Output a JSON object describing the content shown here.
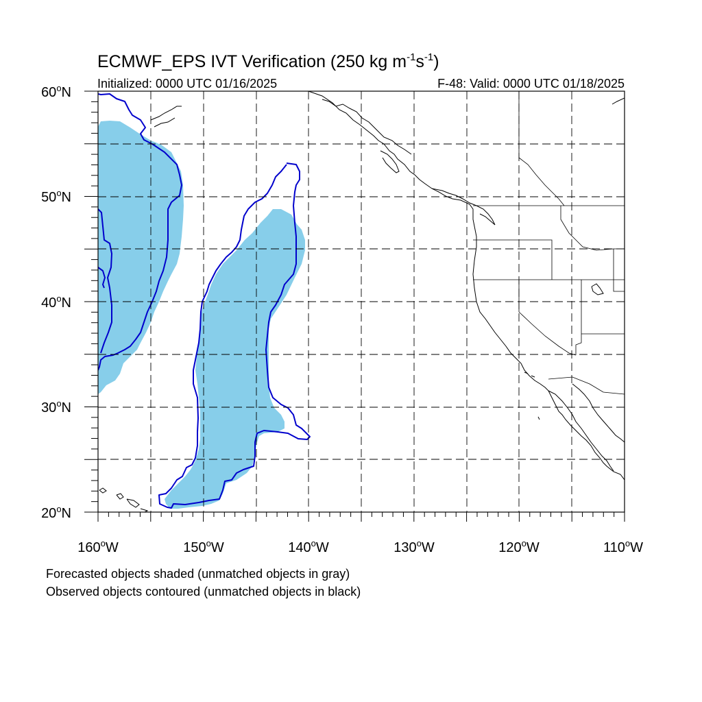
{
  "title": {
    "main": "ECMWF_EPS IVT Verification (250 kg m",
    "sup1": "-1",
    "mid": "s",
    "sup2": "-1",
    "end": ")"
  },
  "initialized": "Initialized: 0000 UTC 01/16/2025",
  "valid": "F-48: Valid: 0000 UTC 01/18/2025",
  "lat_labels": [
    {
      "num": "60",
      "unit": "N"
    },
    {
      "num": "50",
      "unit": "N"
    },
    {
      "num": "40",
      "unit": "N"
    },
    {
      "num": "30",
      "unit": "N"
    },
    {
      "num": "20",
      "unit": "N"
    }
  ],
  "lon_labels": [
    {
      "num": "160",
      "unit": "W"
    },
    {
      "num": "150",
      "unit": "W"
    },
    {
      "num": "140",
      "unit": "W"
    },
    {
      "num": "130",
      "unit": "W"
    },
    {
      "num": "120",
      "unit": "W"
    },
    {
      "num": "110",
      "unit": "W"
    }
  ],
  "deg": "o",
  "notes": [
    "Forecasted objects shaded (unmatched objects in gray)",
    "Observed objects contoured (unmatched objects in black)"
  ],
  "colors": {
    "forecast_fill": "#87ceea",
    "observed_contour": "#0000cc"
  },
  "chart_data": {
    "type": "map",
    "projection": "cylindrical equidistant",
    "lat_range": [
      20,
      60
    ],
    "lon_range": [
      -160,
      -110
    ],
    "grid_spacing_deg": 5,
    "forecast_objects": 2,
    "observed_objects": 3
  }
}
